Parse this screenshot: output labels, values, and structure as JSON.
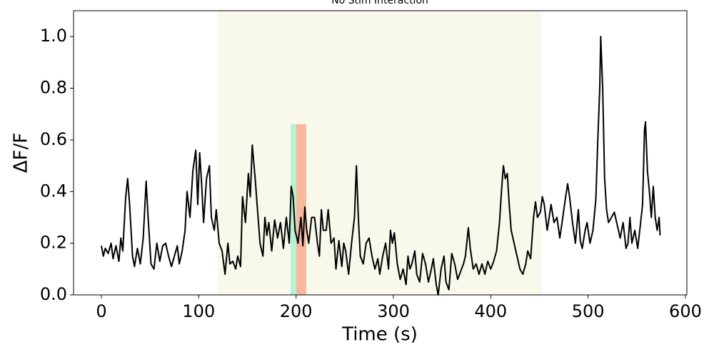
{
  "chart_data": {
    "type": "line",
    "title": "No Stim Interaction",
    "xlabel": "Time (s)",
    "ylabel": "ΔF/F",
    "x": [
      0,
      2,
      4,
      7,
      10,
      12,
      15,
      18,
      20,
      22,
      25,
      27,
      29,
      32,
      34,
      37,
      40,
      43,
      46,
      48,
      51,
      54,
      57,
      60,
      63,
      66,
      69,
      72,
      75,
      78,
      80,
      83,
      86,
      88,
      91,
      94,
      97,
      99,
      101,
      103,
      105,
      108,
      111,
      113,
      116,
      118,
      121,
      124,
      127,
      130,
      132,
      135,
      138,
      140,
      143,
      145,
      148,
      151,
      153,
      155,
      158,
      160,
      163,
      166,
      168,
      170,
      172,
      175,
      178,
      181,
      184,
      187,
      190,
      193,
      195,
      197,
      199,
      202,
      205,
      207,
      209,
      211,
      213,
      216,
      219,
      222,
      224,
      226,
      228,
      231,
      233,
      236,
      239,
      241,
      244,
      247,
      249,
      251,
      254,
      257,
      260,
      262,
      264,
      266,
      269,
      272,
      275,
      278,
      281,
      284,
      286,
      289,
      292,
      295,
      297,
      299,
      301,
      304,
      307,
      310,
      313,
      315,
      317,
      319,
      322,
      324,
      327,
      330,
      333,
      336,
      339,
      341,
      344,
      346,
      349,
      352,
      354,
      357,
      360,
      363,
      366,
      369,
      372,
      374,
      377,
      379,
      382,
      385,
      388,
      391,
      394,
      397,
      400,
      403,
      406,
      409,
      411,
      413,
      415,
      417,
      419,
      421,
      424,
      427,
      430,
      433,
      436,
      438,
      441,
      444,
      446,
      448,
      451,
      453,
      455,
      458,
      460,
      462,
      465,
      468,
      471,
      474,
      477,
      479,
      481,
      484,
      487,
      490,
      492,
      494,
      497,
      499,
      502,
      505,
      508,
      510,
      512,
      513,
      515,
      517,
      519,
      521,
      524,
      527,
      530,
      533,
      536,
      539,
      541,
      543,
      545,
      548,
      551,
      554,
      556,
      558,
      559,
      561,
      563,
      565,
      567,
      569,
      571,
      573,
      574
    ],
    "values": [
      0.19,
      0.15,
      0.18,
      0.16,
      0.2,
      0.14,
      0.19,
      0.13,
      0.22,
      0.17,
      0.38,
      0.45,
      0.35,
      0.15,
      0.11,
      0.18,
      0.12,
      0.22,
      0.44,
      0.3,
      0.12,
      0.1,
      0.2,
      0.13,
      0.19,
      0.2,
      0.15,
      0.11,
      0.15,
      0.19,
      0.12,
      0.17,
      0.25,
      0.4,
      0.3,
      0.48,
      0.56,
      0.35,
      0.55,
      0.43,
      0.28,
      0.45,
      0.5,
      0.3,
      0.25,
      0.33,
      0.2,
      0.17,
      0.08,
      0.2,
      0.12,
      0.13,
      0.1,
      0.15,
      0.11,
      0.38,
      0.28,
      0.47,
      0.38,
      0.58,
      0.45,
      0.35,
      0.2,
      0.15,
      0.3,
      0.23,
      0.28,
      0.17,
      0.29,
      0.22,
      0.28,
      0.18,
      0.3,
      0.2,
      0.42,
      0.38,
      0.25,
      0.2,
      0.3,
      0.19,
      0.34,
      0.25,
      0.2,
      0.3,
      0.3,
      0.2,
      0.15,
      0.33,
      0.25,
      0.25,
      0.33,
      0.2,
      0.22,
      0.1,
      0.21,
      0.11,
      0.2,
      0.17,
      0.08,
      0.2,
      0.3,
      0.5,
      0.3,
      0.15,
      0.12,
      0.2,
      0.22,
      0.15,
      0.1,
      0.14,
      0.08,
      0.15,
      0.2,
      0.1,
      0.25,
      0.2,
      0.24,
      0.12,
      0.06,
      0.1,
      0.04,
      0.15,
      0.1,
      0.12,
      0.17,
      0.08,
      0.05,
      0.16,
      0.12,
      0.05,
      0.1,
      0.14,
      0.04,
      0.0,
      0.1,
      0.15,
      0.05,
      0.02,
      0.16,
      0.12,
      0.06,
      0.09,
      0.12,
      0.15,
      0.26,
      0.18,
      0.1,
      0.12,
      0.08,
      0.12,
      0.08,
      0.13,
      0.1,
      0.13,
      0.17,
      0.28,
      0.4,
      0.5,
      0.45,
      0.47,
      0.35,
      0.25,
      0.2,
      0.15,
      0.1,
      0.08,
      0.12,
      0.17,
      0.14,
      0.3,
      0.36,
      0.3,
      0.32,
      0.38,
      0.35,
      0.25,
      0.3,
      0.35,
      0.28,
      0.3,
      0.22,
      0.3,
      0.38,
      0.43,
      0.38,
      0.28,
      0.2,
      0.33,
      0.21,
      0.18,
      0.25,
      0.28,
      0.2,
      0.25,
      0.37,
      0.6,
      0.8,
      1.0,
      0.8,
      0.45,
      0.33,
      0.28,
      0.3,
      0.32,
      0.27,
      0.22,
      0.28,
      0.18,
      0.2,
      0.3,
      0.2,
      0.25,
      0.18,
      0.28,
      0.35,
      0.64,
      0.67,
      0.48,
      0.4,
      0.3,
      0.42,
      0.3,
      0.25,
      0.3,
      0.23
    ],
    "color": "#000000",
    "spans": [
      {
        "x": [
          119.6,
          451.8
        ],
        "color": "#f8f8eb"
      },
      {
        "x": [
          194.4,
          200.2
        ],
        "ymax": 0.66,
        "color": "#b2f2d6"
      },
      {
        "x": [
          200.2,
          210.5
        ],
        "ymax": 0.66,
        "color": "#f9b89b"
      }
    ],
    "xlim": [
      -28.6,
      601.5
    ],
    "ylim": [
      0,
      1.1
    ],
    "xticks": [
      0,
      100,
      200,
      300,
      400,
      500,
      600
    ],
    "yticks": [
      {
        "value": 0,
        "label": "0.0"
      },
      0.2,
      0.4,
      0.6,
      0.8,
      {
        "value": 1,
        "label": "1.0"
      }
    ]
  }
}
